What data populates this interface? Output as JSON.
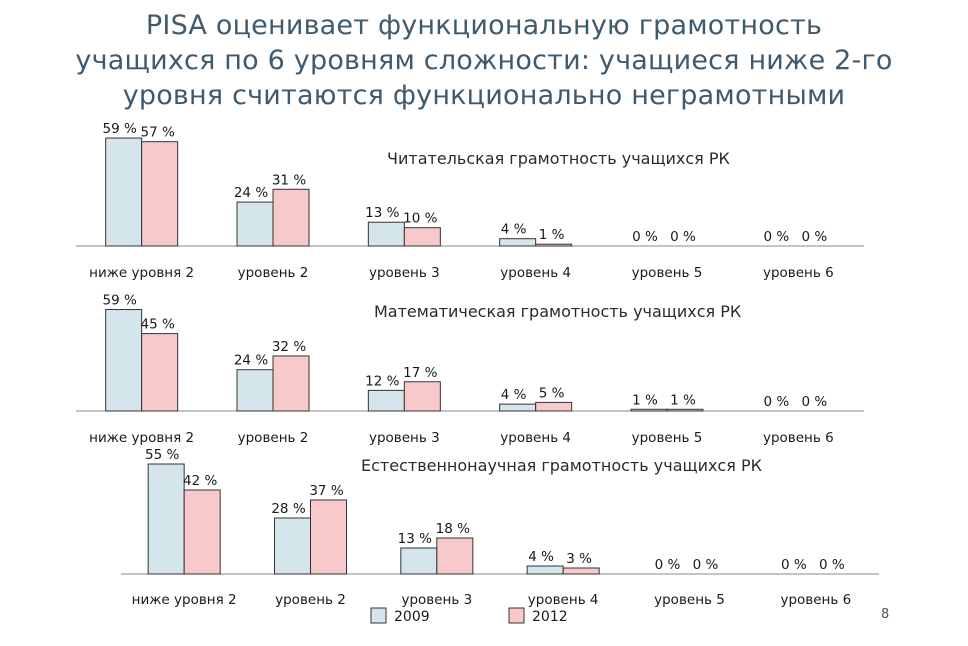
{
  "title_lines": [
    "PISA оценивает функциональную грамотность",
    "учащихся по 6 уровням сложности: учащиеся ниже 2-го",
    "уровня считаются функционально неграмотными"
  ],
  "page_number": "8",
  "colors": {
    "2009": "#d4e6ec",
    "2012": "#f8c9cb",
    "border": "#333333"
  },
  "legend": {
    "2009": "2009",
    "2012": "2012"
  },
  "chart_data": [
    {
      "type": "bar",
      "title": "Читательская грамотность учащихся РК",
      "categories": [
        "ниже уровня 2",
        "уровень 2",
        "уровень 3",
        "уровень 4",
        "уровень 5",
        "уровень 6"
      ],
      "series": [
        {
          "name": "2009",
          "values": [
            59,
            24,
            13,
            4,
            0,
            0
          ],
          "labels": [
            "59 %",
            "24 %",
            "13 %",
            "4 %",
            "0 %",
            "0 %"
          ]
        },
        {
          "name": "2012",
          "values": [
            57,
            31,
            10,
            1,
            0,
            0
          ],
          "labels": [
            "57 %",
            "31 %",
            "10 %",
            "1 %",
            "0 %",
            "0 %"
          ]
        }
      ],
      "ylim": [
        0,
        100
      ],
      "legend": "bottom"
    },
    {
      "type": "bar",
      "title": "Математическая грамотность учащихся РК",
      "categories": [
        "ниже уровня 2",
        "уровень 2",
        "уровень 3",
        "уровень 4",
        "уровень 5",
        "уровень 6"
      ],
      "series": [
        {
          "name": "2009",
          "values": [
            59,
            24,
            12,
            4,
            1,
            0
          ],
          "labels": [
            "59 %",
            "24 %",
            "12 %",
            "4 %",
            "1 %",
            "0 %"
          ]
        },
        {
          "name": "2012",
          "values": [
            45,
            32,
            17,
            5,
            1,
            0
          ],
          "labels": [
            "45 %",
            "32 %",
            "17 %",
            "5 %",
            "1 %",
            "0 %"
          ]
        }
      ],
      "ylim": [
        0,
        100
      ],
      "legend": "bottom"
    },
    {
      "type": "bar",
      "title": "Естественнонаучная грамотность учащихся РК",
      "categories": [
        "ниже уровня 2",
        "уровень 2",
        "уровень 3",
        "уровень 4",
        "уровень 5",
        "уровень 6"
      ],
      "series": [
        {
          "name": "2009",
          "values": [
            55,
            28,
            13,
            4,
            0,
            0
          ],
          "labels": [
            "55 %",
            "28 %",
            "13 %",
            "4 %",
            "0 %",
            "0 %"
          ]
        },
        {
          "name": "2012",
          "values": [
            42,
            37,
            18,
            3,
            0,
            0
          ],
          "labels": [
            "42 %",
            "37 %",
            "18 %",
            "3 %",
            "0 %",
            "0 %"
          ]
        }
      ],
      "ylim": [
        0,
        100
      ],
      "legend": "bottom"
    }
  ]
}
